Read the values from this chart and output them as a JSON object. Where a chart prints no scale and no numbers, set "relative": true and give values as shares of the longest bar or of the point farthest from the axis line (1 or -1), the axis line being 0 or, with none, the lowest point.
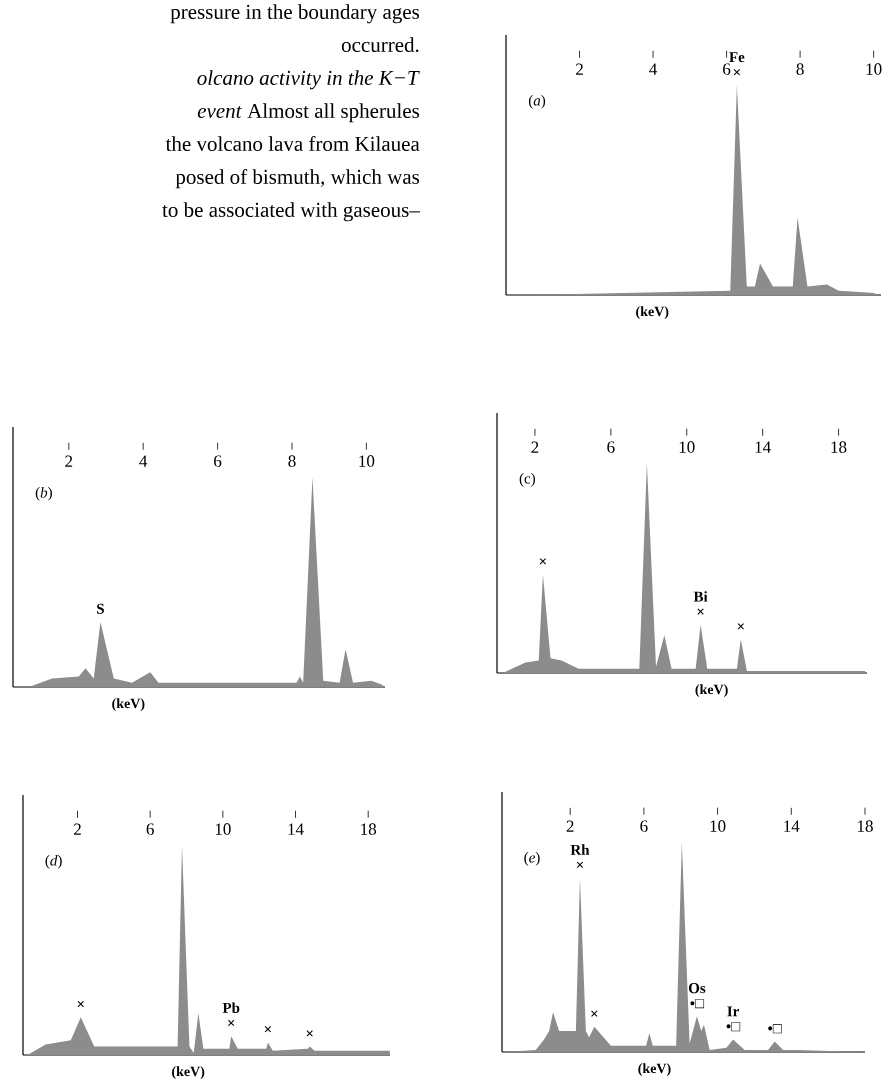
{
  "chart_data": [
    {
      "type": "area",
      "title": "(*a*)",
      "xlabel": "(keV)",
      "relative": true,
      "color": "#8c8c8c",
      "xlim": [
        0,
        10.2
      ],
      "xticks": [
        2,
        4,
        6,
        8,
        10
      ],
      "x": [
        0.57,
        6.1,
        6.28,
        6.55,
        6.77,
        6.91,
        7.26,
        7.8,
        7.93,
        8.2,
        8.73,
        9.05,
        10.03
      ],
      "values": [
        0,
        0.02,
        1.0,
        0.04,
        0.04,
        0.15,
        0.04,
        0.04,
        0.37,
        0.04,
        0.05,
        0.02,
        0.01
      ],
      "annotations": [
        {
          "text": "×",
          "x": 6.28,
          "y": 1.0
        },
        {
          "text": "Fe",
          "x": 6.28,
          "y": 1.0
        },
        "pressure in the boundary ages",
        "occurred.",
        "*olcano activity in the K−T*",
        "*event* Almost all spherules",
        "the volcano lava from Kilauea",
        "posed of bismuth, which was",
        "to be associated with gaseous–"
      ]
    },
    {
      "type": "area",
      "title": "(*b*)",
      "xlabel": "(keV)",
      "relative": true,
      "color": "#8c8c8c",
      "xlim": [
        0.5,
        10.5
      ],
      "xticks": [
        2,
        4,
        6,
        8,
        10
      ],
      "x": [
        0.93,
        1.55,
        2.27,
        2.45,
        2.67,
        2.85,
        3.21,
        3.7,
        4.19,
        4.41,
        8.12,
        8.21,
        8.3,
        8.55,
        8.84,
        9.28,
        9.44,
        9.64,
        10.13,
        10.44
      ],
      "values": [
        0,
        0.04,
        0.05,
        0.09,
        0.04,
        0.31,
        0.04,
        0.02,
        0.07,
        0.02,
        0.02,
        0.05,
        0.02,
        1.0,
        0.03,
        0.02,
        0.18,
        0.02,
        0.03,
        0.01
      ],
      "annotations": [
        {
          "text": "S",
          "x": 2.85,
          "y": 0.31
        }
      ]
    },
    {
      "type": "area",
      "title": "(c)",
      "xlabel": "(keV)",
      "relative": true,
      "color": "#8c8c8c",
      "xlim": [
        0,
        19.5
      ],
      "xticks": [
        2,
        6,
        10,
        14,
        18
      ],
      "x": [
        0.3,
        1.5,
        2.2,
        2.42,
        2.82,
        3.4,
        4.3,
        7.5,
        7.9,
        8.38,
        8.82,
        9.2,
        10.47,
        10.73,
        11.08,
        12.64,
        12.85,
        13.17,
        19.4
      ],
      "values": [
        0,
        0.05,
        0.06,
        0.47,
        0.07,
        0.06,
        0.02,
        0.02,
        1.0,
        0.03,
        0.18,
        0.02,
        0.02,
        0.23,
        0.02,
        0.02,
        0.16,
        0.01,
        0.01
      ],
      "annotations": [
        {
          "text": "×",
          "x": 2.42,
          "y": 0.47
        },
        {
          "text": "×",
          "x": 10.73,
          "y": 0.23
        },
        {
          "text": "Bi",
          "x": 10.73,
          "y": 0.23
        },
        {
          "text": "×",
          "x": 12.85,
          "y": 0.16
        }
      ]
    },
    {
      "type": "area",
      "title": "(*d*)",
      "xlabel": "(keV)",
      "relative": true,
      "color": "#8c8c8c",
      "xlim": [
        -1,
        19.2
      ],
      "xticks": [
        2,
        6,
        10,
        14,
        18
      ],
      "x": [
        -0.76,
        0.25,
        1.63,
        2.18,
        2.92,
        7.51,
        7.75,
        8.16,
        8.4,
        8.65,
        8.93,
        10.36,
        10.46,
        10.82,
        12.39,
        12.48,
        12.75,
        14.68,
        14.78,
        15.05,
        19.19
      ],
      "values": [
        0,
        0.05,
        0.07,
        0.18,
        0.04,
        0.04,
        1.0,
        0.04,
        0.01,
        0.2,
        0.03,
        0.03,
        0.09,
        0.03,
        0.03,
        0.06,
        0.02,
        0.03,
        0.04,
        0.02,
        0.02
      ],
      "annotations": [
        {
          "text": "×",
          "x": 2.18,
          "y": 0.18
        },
        {
          "text": "×",
          "x": 10.46,
          "y": 0.09
        },
        {
          "text": "Pb",
          "x": 10.46,
          "y": 0.09
        },
        {
          "text": "×",
          "x": 12.48,
          "y": 0.06
        },
        {
          "text": "×",
          "x": 14.78,
          "y": 0.04
        }
      ]
    },
    {
      "type": "area",
      "title": "(*e*)",
      "xlabel": "(keV)",
      "relative": true,
      "color": "#8c8c8c",
      "xlim": [
        -1.7,
        18
      ],
      "xticks": [
        2,
        6,
        10,
        14,
        18
      ],
      "x": [
        -1.6,
        0.13,
        0.58,
        0.86,
        1.07,
        1.4,
        2.31,
        2.53,
        2.85,
        3.03,
        3.31,
        4.21,
        6.12,
        6.3,
        6.48,
        7.75,
        8.06,
        8.48,
        8.88,
        9.11,
        9.26,
        9.57,
        10.48,
        10.84,
        11.47,
        12.74,
        13.1,
        13.56,
        14.29,
        18.0
      ],
      "values": [
        0,
        0.01,
        0.06,
        0.1,
        0.19,
        0.1,
        0.1,
        0.83,
        0.1,
        0.07,
        0.12,
        0.03,
        0.03,
        0.09,
        0.03,
        0.03,
        1.0,
        0.04,
        0.17,
        0.1,
        0.13,
        0.01,
        0.02,
        0.06,
        0.01,
        0.01,
        0.05,
        0.01,
        0.01,
        0
      ],
      "annotations": [
        {
          "text": "×",
          "x": 2.53,
          "y": 0.83
        },
        {
          "text": "Rh",
          "x": 2.53,
          "y": 0.83
        },
        {
          "text": "×",
          "x": 3.31,
          "y": 0.12
        },
        {
          "text": "•□",
          "x": 8.88,
          "y": 0.17
        },
        {
          "text": "Os",
          "x": 8.88,
          "y": 0.17
        },
        {
          "text": "•□",
          "x": 10.84,
          "y": 0.06
        },
        {
          "text": "Ir",
          "x": 10.84,
          "y": 0.06
        },
        {
          "text": "•□",
          "x": 13.1,
          "y": 0.05
        }
      ]
    }
  ]
}
